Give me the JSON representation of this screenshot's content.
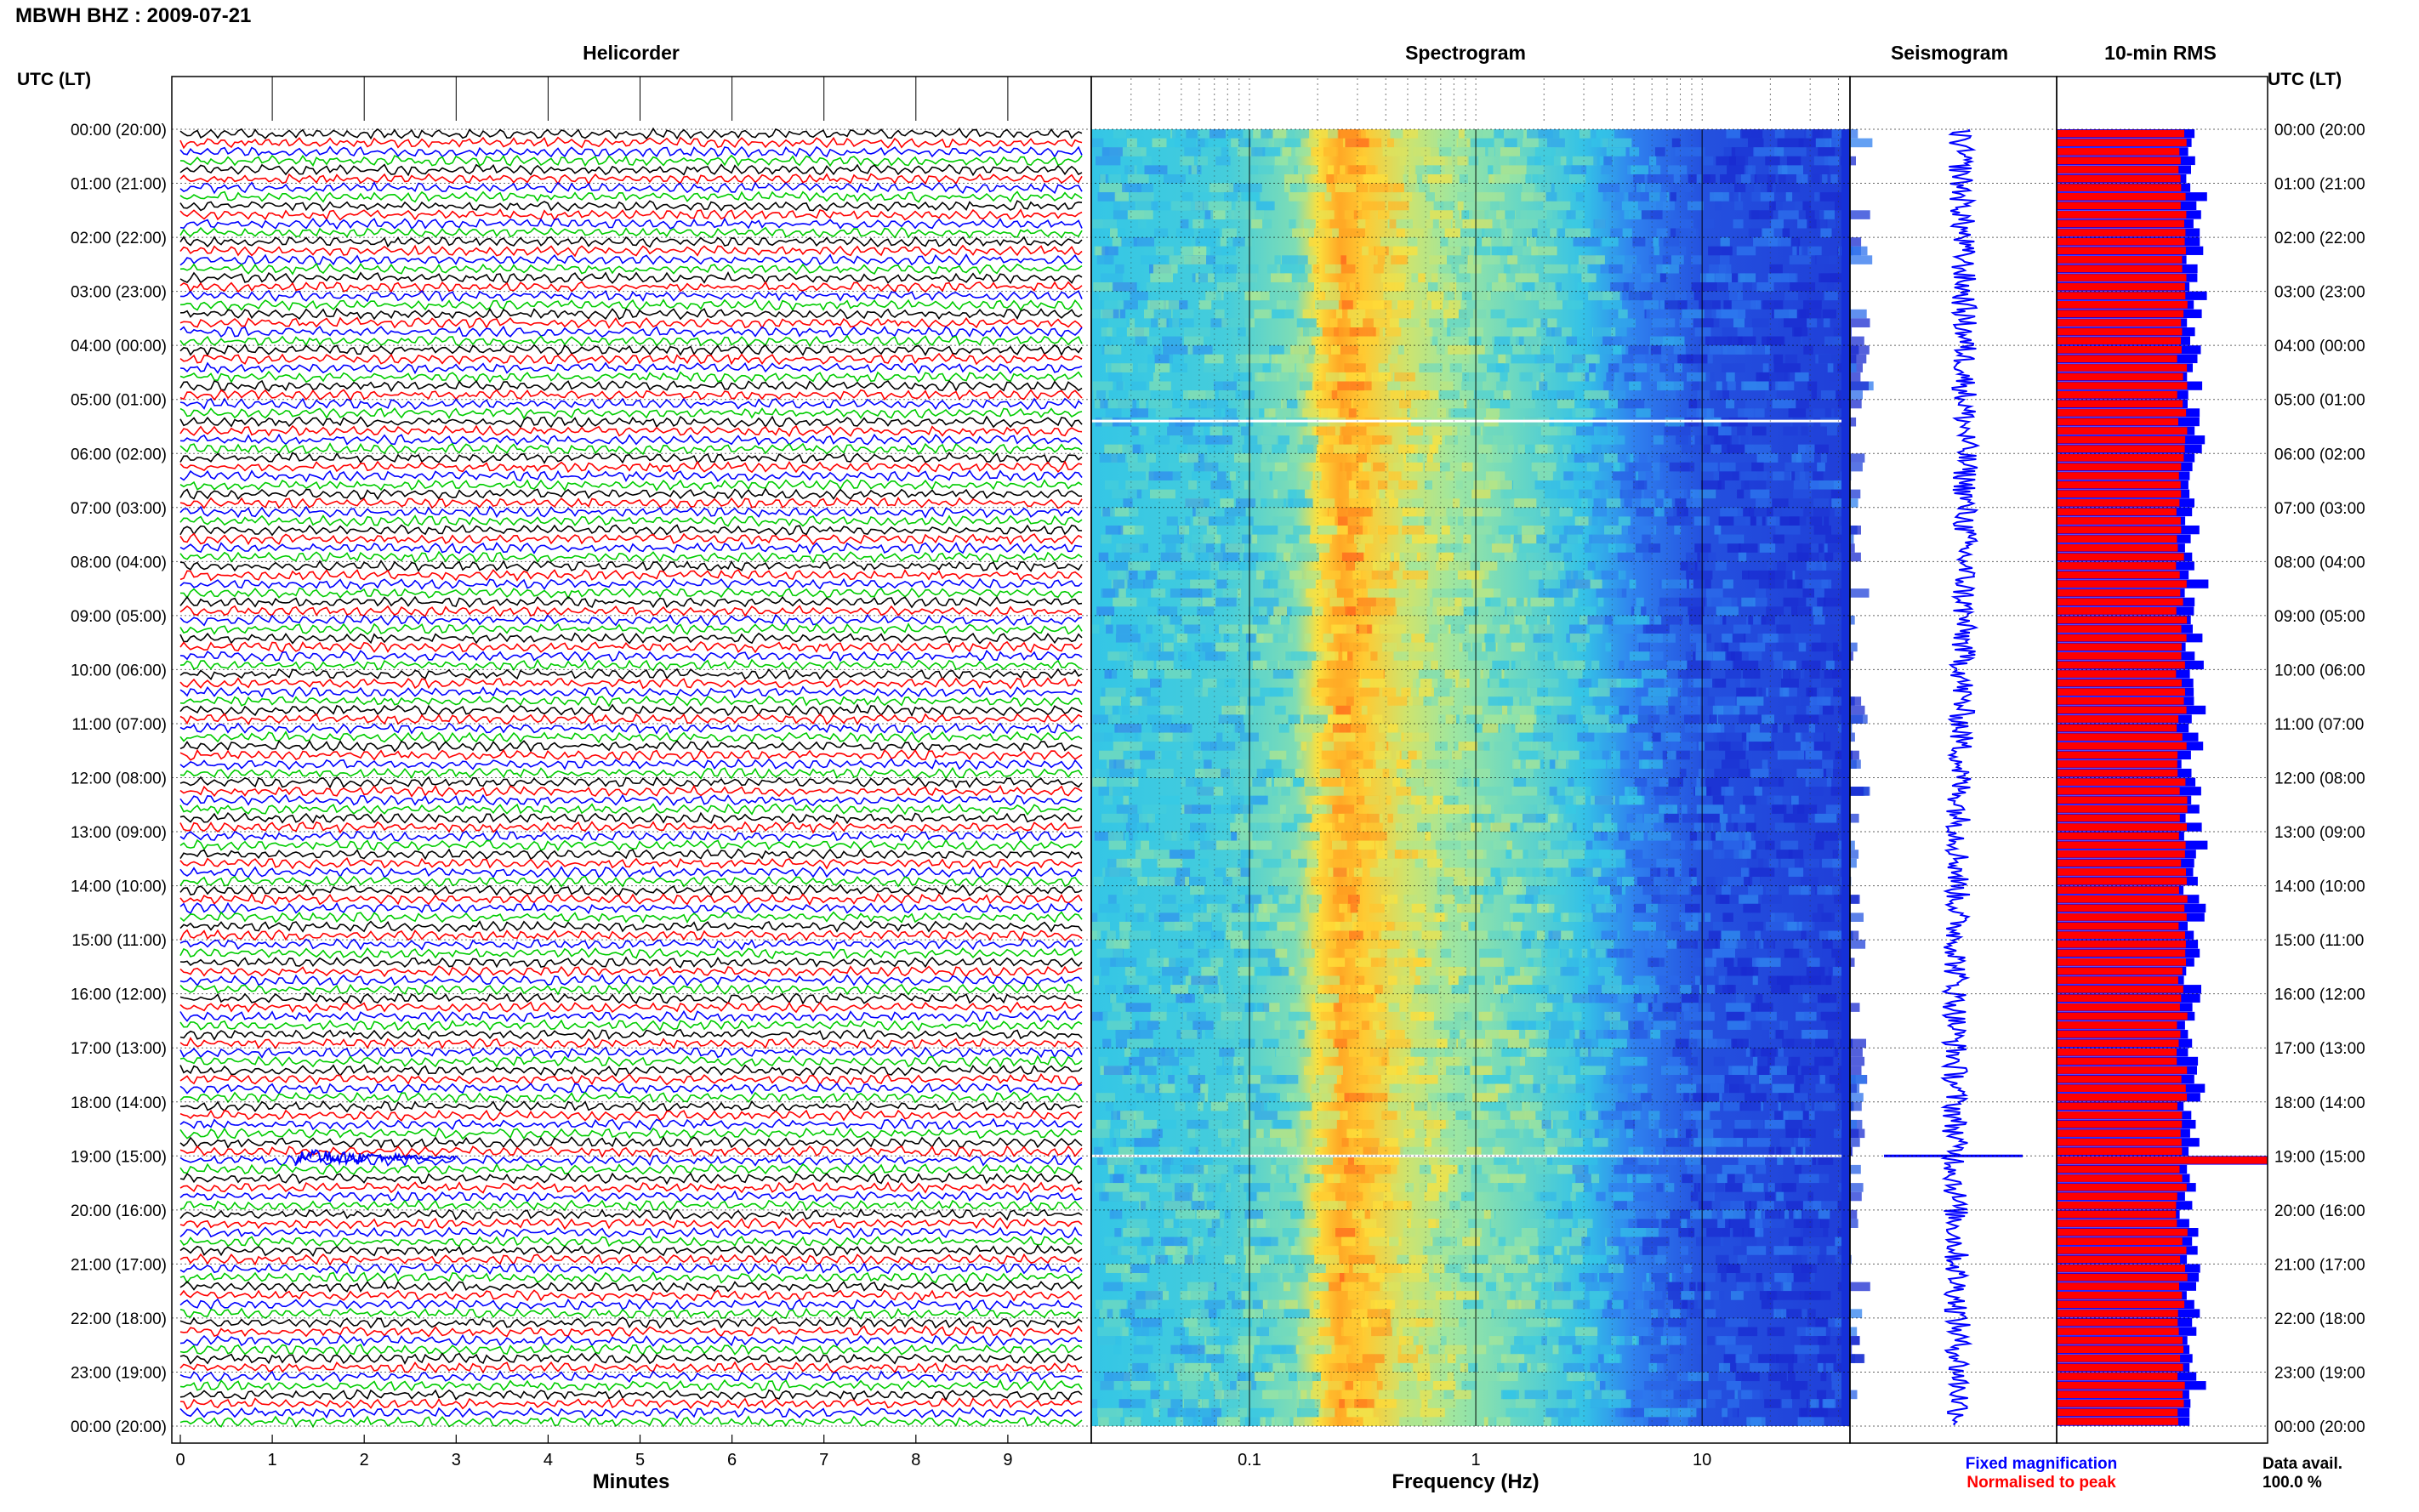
{
  "figure": {
    "title": "MBWH BHZ : 2009-07-21",
    "utc_header_left": "UTC (LT)",
    "utc_header_right": "UTC (LT)"
  },
  "chart_data": [
    {
      "type": "line",
      "title": "Helicorder",
      "xlabel": "Minutes",
      "x_ticks": [
        "0",
        "1",
        "2",
        "3",
        "4",
        "5",
        "6",
        "7",
        "8",
        "9"
      ],
      "xlim": [
        0,
        10
      ],
      "y_tick_labels": [
        "00:00 (20:00)",
        "01:00 (21:00)",
        "02:00 (22:00)",
        "03:00 (23:00)",
        "04:00 (00:00)",
        "05:00 (01:00)",
        "06:00 (02:00)",
        "07:00 (03:00)",
        "08:00 (04:00)",
        "09:00 (05:00)",
        "10:00 (06:00)",
        "11:00 (07:00)",
        "12:00 (08:00)",
        "13:00 (09:00)",
        "14:00 (10:00)",
        "15:00 (11:00)",
        "16:00 (12:00)",
        "17:00 (13:00)",
        "18:00 (14:00)",
        "19:00 (15:00)",
        "20:00 (16:00)",
        "21:00 (17:00)",
        "22:00 (18:00)",
        "23:00 (19:00)",
        "00:00 (20:00)"
      ],
      "trace_colors": [
        "#000000",
        "#ff0000",
        "#0000ff",
        "#00cc00"
      ],
      "lines_per_hour": 6,
      "event": {
        "hour": 19,
        "start_min": 1.25,
        "end_min": 3.0,
        "color": "#0000ff"
      }
    },
    {
      "type": "heatmap",
      "title": "Spectrogram",
      "xlabel": "Frequency (Hz)",
      "x_scale": "log",
      "xlim": [
        0.02,
        45
      ],
      "x_ticks": [
        "0.1",
        "1",
        "10"
      ],
      "colormap": [
        "#1a2bd0",
        "#2f7bf0",
        "#34c8e6",
        "#9ee6a0",
        "#ffe13a",
        "#ff9a20",
        "#ff3a1a"
      ],
      "gaps_at_hours": [
        5.4,
        19.0
      ]
    },
    {
      "type": "line",
      "title": "Seismogram",
      "color": "#0000ff",
      "event_hour": 19.0
    },
    {
      "type": "bar",
      "title": "10-min RMS",
      "series": [
        {
          "name": "Fixed magnification",
          "color": "#0000ff"
        },
        {
          "name": "Normalised to peak",
          "color": "#ff0000"
        }
      ],
      "bars_per_hour": 6,
      "peak_hour": 19.0
    }
  ],
  "legend": {
    "fixed": "Fixed magnification",
    "normalised": "Normalised to peak"
  },
  "availability": {
    "label": "Data avail.",
    "value": "100.0 %"
  }
}
